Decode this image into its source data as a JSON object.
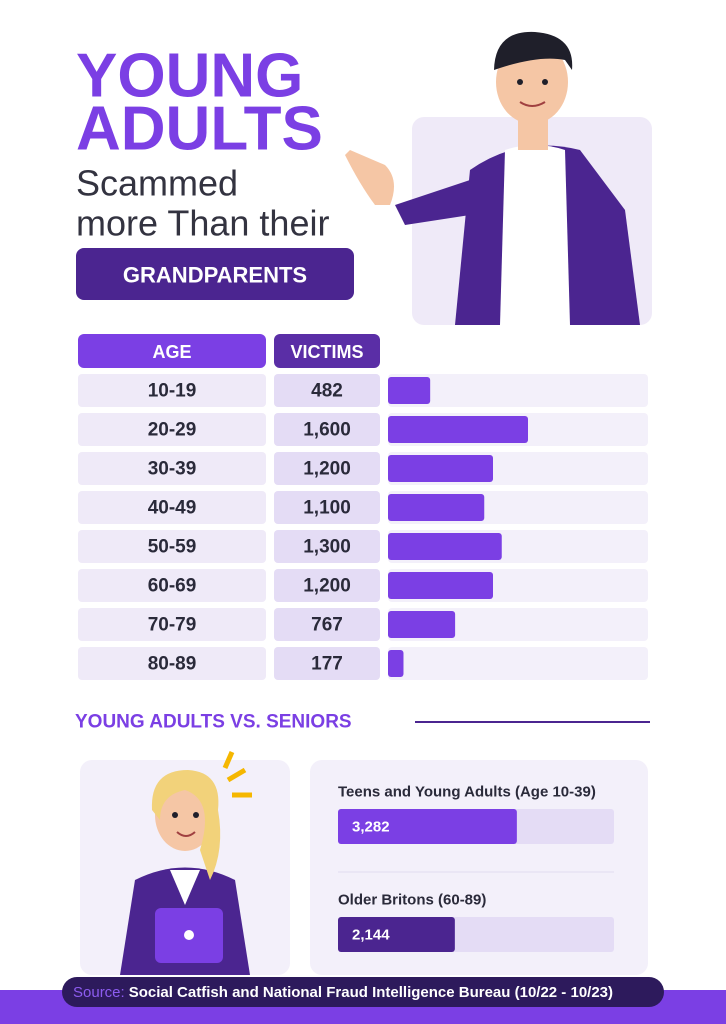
{
  "header": {
    "title_line1": "YOUNG",
    "title_line2": "ADULTS",
    "subtitle_line1": "Scammed",
    "subtitle_line2": "more Than their",
    "badge": "GRANDPARENTS"
  },
  "chart_data": [
    {
      "type": "bar",
      "orientation": "horizontal",
      "category_header": "AGE",
      "value_header": "VICTIMS",
      "categories": [
        "10-19",
        "20-29",
        "30-39",
        "40-49",
        "50-59",
        "60-69",
        "70-79",
        "80-89"
      ],
      "values": [
        482,
        1600,
        1200,
        1100,
        1300,
        1200,
        767,
        177
      ],
      "value_labels": [
        "482",
        "1,600",
        "1,200",
        "1,100",
        "1,300",
        "1,200",
        "767",
        "177"
      ],
      "color": "#7b3fe4"
    },
    {
      "type": "bar",
      "orientation": "horizontal",
      "title": "YOUNG ADULTS VS. SENIORS",
      "categories": [
        "Teens and Young Adults (Age 10-39)",
        "Older Britons (60-89)"
      ],
      "values": [
        3282,
        2144
      ],
      "value_labels": [
        "3,282",
        "2,144"
      ],
      "colors": [
        "#7b3fe4",
        "#4b2590"
      ]
    }
  ],
  "source": {
    "label": "Source:",
    "text": "Social Catfish and National Fraud Intelligence Bureau (10/22 - 10/23)"
  }
}
